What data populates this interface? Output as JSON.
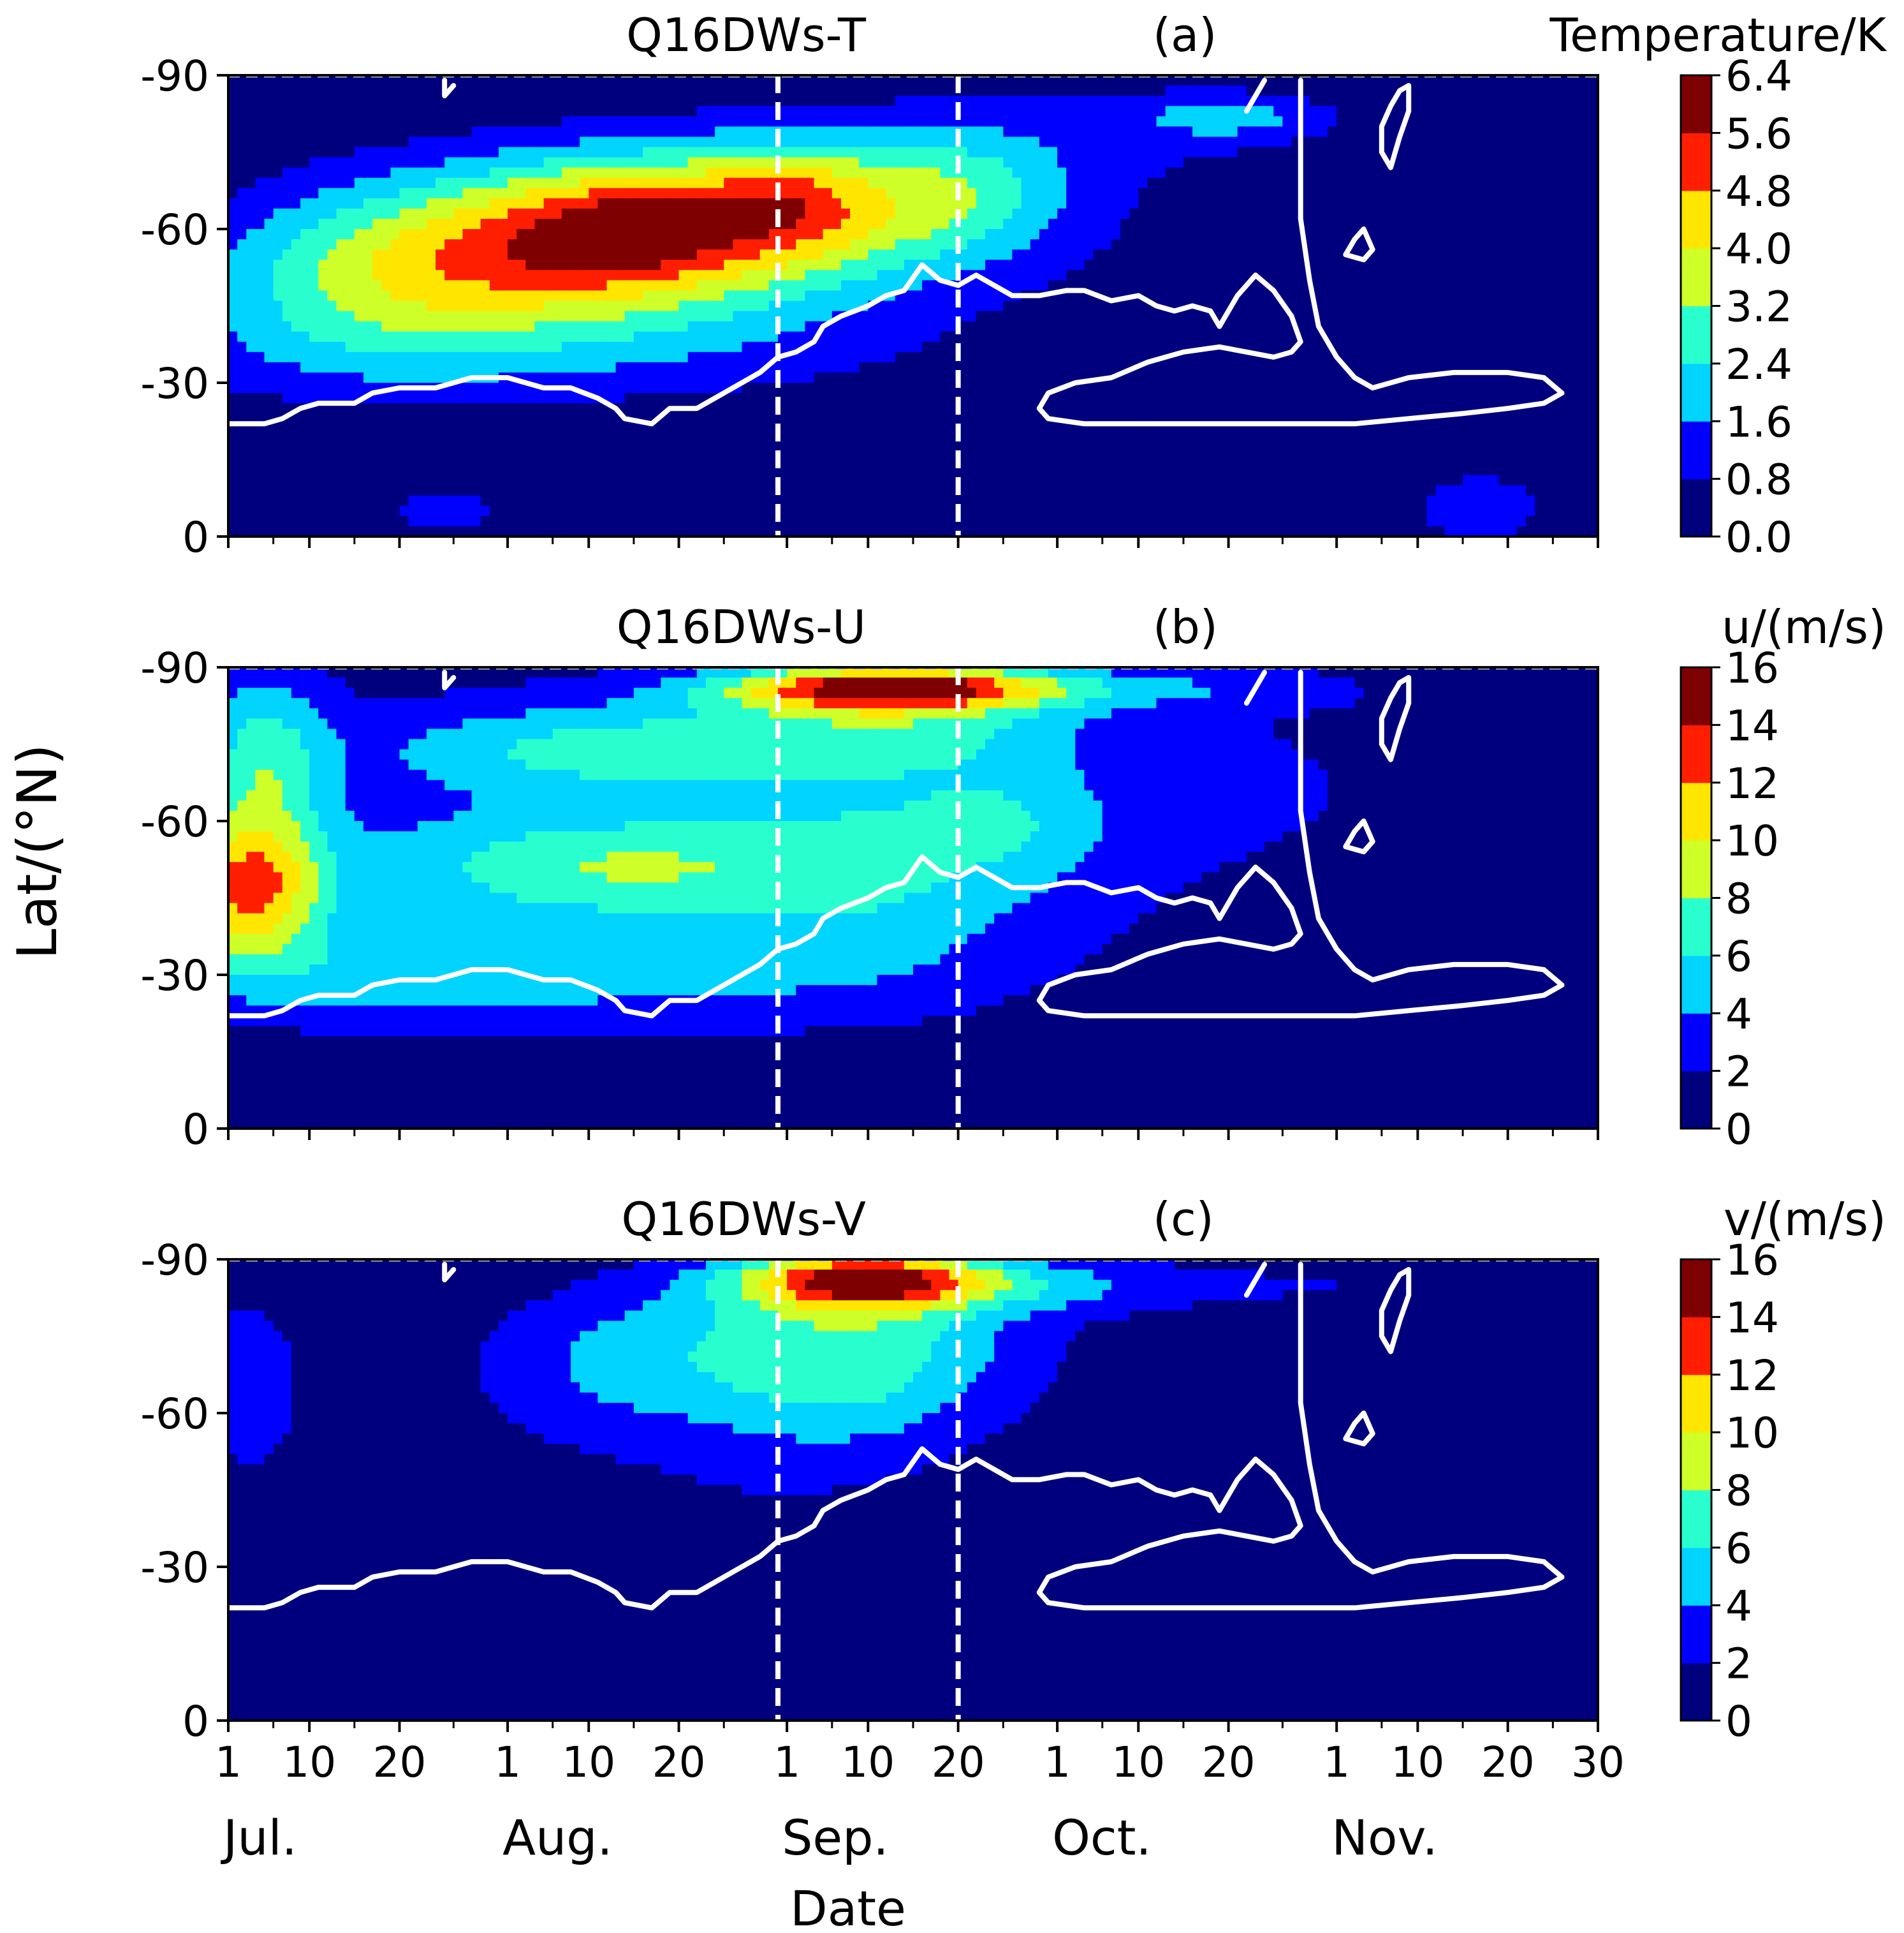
{
  "figure": {
    "y_label": "Lat/(°N)",
    "x_label": "Date",
    "colormap": [
      "#00007f",
      "#0000ff",
      "#0063ff",
      "#00d4ff",
      "#29ffce",
      "#7dff7a",
      "#ceff29",
      "#ffe600",
      "#ff8400",
      "#ff1e00",
      "#7f0000"
    ],
    "contour_color": "#ffffff",
    "highlight_dates": [
      "Aug. 31",
      "Sep. 20"
    ]
  },
  "chart_data": [
    {
      "type": "heatmap",
      "panel_id": "a",
      "title": "Q16DWs-T",
      "letter": "(a)",
      "colorbar_label": "Temperature/K",
      "colorbar_ticks": [
        "0.0",
        "0.8",
        "1.6",
        "2.4",
        "3.2",
        "4.0",
        "4.8",
        "5.6",
        "6.4"
      ],
      "levels": [
        0,
        0.8,
        1.6,
        2.4,
        3.2,
        4.0,
        4.8,
        5.6,
        6.4
      ],
      "y_ticks": [
        "-90",
        "-60",
        "-30",
        "0"
      ],
      "ylim": [
        -90,
        0
      ],
      "xlim": [
        1,
        153
      ],
      "blobs": [
        {
          "day": 40,
          "lat": -57,
          "sd": 22,
          "sl": 12,
          "amp": 4.2
        },
        {
          "day": 21,
          "lat": -52,
          "sd": 14,
          "sl": 9,
          "amp": 0.9
        },
        {
          "day": 20,
          "lat": -48,
          "sd": 13,
          "sl": 12,
          "amp": 0.5
        },
        {
          "day": 12,
          "lat": -40,
          "sd": 16,
          "sl": 10,
          "amp": 0.8
        },
        {
          "day": 45,
          "lat": -60,
          "sd": 9,
          "sl": 8,
          "amp": 1.5
        },
        {
          "day": 63,
          "lat": -66,
          "sd": 6,
          "sl": 7,
          "amp": 1.2
        },
        {
          "day": 68,
          "lat": -65,
          "sd": 18,
          "sl": 10,
          "amp": 2.5
        },
        {
          "day": 83,
          "lat": -68,
          "sd": 7,
          "sl": 8,
          "amp": 0.9
        },
        {
          "day": 37,
          "lat": -35,
          "sd": 30,
          "sl": 8,
          "amp": 0.9
        },
        {
          "day": 112,
          "lat": -82,
          "sd": 7,
          "sl": 3,
          "amp": 1.4
        },
        {
          "day": 100,
          "lat": -80,
          "sd": 22,
          "sl": 8,
          "amp": 0.8
        },
        {
          "day": 25,
          "lat": -5,
          "sd": 8,
          "sl": 5,
          "amp": 1.0
        },
        {
          "day": 140,
          "lat": -5,
          "sd": 6,
          "sl": 6,
          "amp": 1.2
        },
        {
          "day": 79,
          "lat": -5,
          "sd": 8,
          "sl": 4,
          "amp": 0.6
        },
        {
          "day": 120,
          "lat": -40,
          "sd": 35,
          "sl": 20,
          "amp": 0.35
        }
      ]
    },
    {
      "type": "heatmap",
      "panel_id": "b",
      "title": "Q16DWs-U",
      "letter": "(b)",
      "colorbar_label": "u/(m/s)",
      "colorbar_ticks": [
        "0",
        "2",
        "4",
        "6",
        "8",
        "10",
        "12",
        "14",
        "16"
      ],
      "levels": [
        0,
        2,
        4,
        6,
        8,
        10,
        12,
        14,
        16
      ],
      "y_ticks": [
        "-90",
        "-60",
        "-30",
        "0"
      ],
      "ylim": [
        -90,
        0
      ],
      "xlim": [
        1,
        153
      ],
      "blobs": [
        {
          "day": 3,
          "lat": -46,
          "sd": 6,
          "sl": 9,
          "amp": 9.5
        },
        {
          "day": 5,
          "lat": -70,
          "sd": 5,
          "sl": 14,
          "amp": 5.5
        },
        {
          "day": 42,
          "lat": -51,
          "sd": 16,
          "sl": 7,
          "amp": 5.0
        },
        {
          "day": 42,
          "lat": -74,
          "sd": 16,
          "sl": 6,
          "amp": 4.5
        },
        {
          "day": 25,
          "lat": -30,
          "sd": 30,
          "sl": 7,
          "amp": 3.5
        },
        {
          "day": 75,
          "lat": -86,
          "sd": 13,
          "sl": 3,
          "amp": 12.5
        },
        {
          "day": 75,
          "lat": -80,
          "sd": 15,
          "sl": 7,
          "amp": 4.5
        },
        {
          "day": 72,
          "lat": -50,
          "sd": 14,
          "sl": 16,
          "amp": 3.5
        },
        {
          "day": 88,
          "lat": -60,
          "sd": 8,
          "sl": 8,
          "amp": 2.5
        },
        {
          "day": 40,
          "lat": -55,
          "sd": 55,
          "sl": 28,
          "amp": 2.8
        },
        {
          "day": 120,
          "lat": -70,
          "sd": 25,
          "sl": 20,
          "amp": 1.2
        },
        {
          "day": 110,
          "lat": -86,
          "sd": 12,
          "sl": 3,
          "amp": 2.0
        }
      ]
    },
    {
      "type": "heatmap",
      "panel_id": "c",
      "title": "Q16DWs-V",
      "letter": "(c)",
      "colorbar_label": "v/(m/s)",
      "colorbar_ticks": [
        "0",
        "2",
        "4",
        "6",
        "8",
        "10",
        "12",
        "14",
        "16"
      ],
      "levels": [
        0,
        2,
        4,
        6,
        8,
        10,
        12,
        14,
        16
      ],
      "y_ticks": [
        "-90",
        "-60",
        "-30",
        "0"
      ],
      "ylim": [
        -90,
        0
      ],
      "xlim": [
        1,
        153
      ],
      "blobs": [
        {
          "day": 72,
          "lat": -86,
          "sd": 10,
          "sl": 4,
          "amp": 12.0
        },
        {
          "day": 70,
          "lat": -76,
          "sd": 14,
          "sl": 11,
          "amp": 5.5
        },
        {
          "day": 68,
          "lat": -62,
          "sd": 11,
          "sl": 10,
          "amp": 2.5
        },
        {
          "day": 44,
          "lat": -70,
          "sd": 10,
          "sl": 10,
          "amp": 2.8
        },
        {
          "day": 3,
          "lat": -66,
          "sd": 4,
          "sl": 12,
          "amp": 3.0
        },
        {
          "day": 96,
          "lat": -85,
          "sd": 12,
          "sl": 4,
          "amp": 2.8
        },
        {
          "day": 125,
          "lat": -85,
          "sd": 12,
          "sl": 5,
          "amp": 1.6
        },
        {
          "day": 50,
          "lat": -60,
          "sd": 45,
          "sl": 25,
          "amp": 1.3
        },
        {
          "day": 50,
          "lat": -35,
          "sd": 20,
          "sl": 8,
          "amp": 1.0
        }
      ]
    }
  ],
  "x_axis": {
    "day_ticks": [
      {
        "day": 1,
        "label": "1"
      },
      {
        "day": 10,
        "label": "10"
      },
      {
        "day": 20,
        "label": "20"
      },
      {
        "day": 32,
        "label": "1"
      },
      {
        "day": 41,
        "label": "10"
      },
      {
        "day": 51,
        "label": "20"
      },
      {
        "day": 63,
        "label": "1"
      },
      {
        "day": 72,
        "label": "10"
      },
      {
        "day": 82,
        "label": "20"
      },
      {
        "day": 93,
        "label": "1"
      },
      {
        "day": 102,
        "label": "10"
      },
      {
        "day": 112,
        "label": "20"
      },
      {
        "day": 124,
        "label": "1"
      },
      {
        "day": 133,
        "label": "10"
      },
      {
        "day": 143,
        "label": "20"
      },
      {
        "day": 153,
        "label": "30"
      }
    ],
    "minor_ticks": [
      6,
      15,
      26,
      37,
      46,
      56,
      68,
      77,
      87,
      98,
      107,
      118,
      129,
      138,
      148
    ],
    "months": [
      {
        "day": 1,
        "label": "Jul."
      },
      {
        "day": 32,
        "label": "Aug."
      },
      {
        "day": 63,
        "label": "Sep."
      },
      {
        "day": 93,
        "label": "Oct."
      },
      {
        "day": 124,
        "label": "Nov."
      }
    ],
    "vlines": [
      62,
      82
    ]
  },
  "contours": {
    "main_line": [
      [
        1,
        -22
      ],
      [
        5,
        -22
      ],
      [
        7,
        -23
      ],
      [
        9,
        -25
      ],
      [
        11,
        -26
      ],
      [
        15,
        -26
      ],
      [
        17,
        -28
      ],
      [
        20,
        -29
      ],
      [
        24,
        -29
      ],
      [
        26,
        -30
      ],
      [
        28,
        -31
      ],
      [
        32,
        -31
      ],
      [
        36,
        -29
      ],
      [
        39,
        -29
      ],
      [
        42,
        -27
      ],
      [
        44,
        -25
      ],
      [
        45,
        -23
      ],
      [
        48,
        -22
      ],
      [
        50,
        -25
      ],
      [
        53,
        -25
      ],
      [
        55,
        -27
      ],
      [
        57,
        -29
      ],
      [
        60,
        -32
      ],
      [
        62,
        -35
      ],
      [
        64,
        -36
      ],
      [
        66,
        -38
      ],
      [
        67,
        -41
      ],
      [
        69,
        -43
      ],
      [
        72,
        -45
      ],
      [
        74,
        -47
      ],
      [
        76,
        -48
      ],
      [
        78,
        -53
      ],
      [
        80,
        -50
      ],
      [
        82,
        -49
      ],
      [
        84,
        -51
      ],
      [
        86,
        -49
      ],
      [
        88,
        -47
      ],
      [
        91,
        -47
      ],
      [
        94,
        -48
      ],
      [
        96,
        -48
      ],
      [
        99,
        -46
      ],
      [
        102,
        -47
      ],
      [
        104,
        -45
      ],
      [
        106,
        -44
      ],
      [
        108,
        -45
      ],
      [
        110,
        -44
      ],
      [
        111,
        -41
      ]
    ],
    "lobe": [
      [
        111,
        -41
      ],
      [
        113,
        -47
      ],
      [
        115,
        -51
      ],
      [
        117,
        -48
      ],
      [
        119,
        -43
      ],
      [
        120,
        -38
      ],
      [
        119,
        -36
      ],
      [
        117,
        -35
      ],
      [
        114,
        -36
      ],
      [
        111,
        -37
      ],
      [
        107,
        -36
      ],
      [
        103,
        -34
      ],
      [
        99,
        -31
      ],
      [
        95,
        -30
      ],
      [
        92,
        -28
      ],
      [
        91,
        -25
      ],
      [
        92,
        -23
      ],
      [
        96,
        -22
      ],
      [
        102,
        -22
      ],
      [
        108,
        -22
      ],
      [
        114,
        -22
      ],
      [
        120,
        -22
      ],
      [
        126,
        -22
      ],
      [
        132,
        -23
      ],
      [
        138,
        -24
      ],
      [
        143,
        -25
      ],
      [
        147,
        -26
      ],
      [
        149,
        -28
      ],
      [
        147,
        -31
      ],
      [
        143,
        -32
      ],
      [
        137,
        -32
      ],
      [
        132,
        -31
      ],
      [
        130,
        -30
      ],
      [
        128,
        -29
      ],
      [
        126,
        -31
      ],
      [
        124,
        -35
      ],
      [
        122,
        -41
      ],
      [
        121,
        -50
      ],
      [
        120,
        -62
      ],
      [
        120,
        -77
      ],
      [
        120,
        -89
      ]
    ],
    "u_hook": [
      [
        130,
        -72
      ],
      [
        129,
        -75
      ],
      [
        129,
        -80
      ],
      [
        130,
        -84
      ],
      [
        131,
        -87
      ],
      [
        132,
        -88
      ],
      [
        132,
        -83
      ],
      [
        131,
        -78
      ],
      [
        130,
        -72
      ]
    ],
    "small_loop": [
      [
        125,
        -55
      ],
      [
        126,
        -58
      ],
      [
        127,
        -60
      ],
      [
        128,
        -56
      ],
      [
        127,
        -54
      ],
      [
        125,
        -55
      ]
    ],
    "top_tick": [
      [
        114,
        -83
      ],
      [
        115,
        -86
      ],
      [
        116,
        -89
      ]
    ],
    "small_notch": [
      [
        25,
        -89
      ],
      [
        25,
        -86
      ],
      [
        26,
        -88
      ]
    ]
  }
}
